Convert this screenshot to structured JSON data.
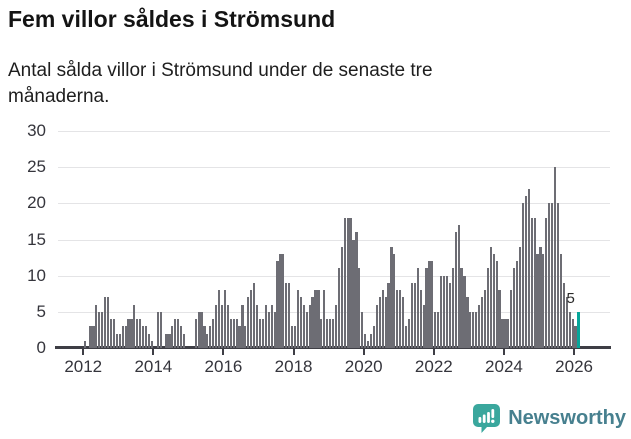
{
  "header": {
    "title": "Fem villor såldes i Strömsund",
    "subtitle": "Antal sålda villor i Strömsund under de senaste tre månaderna."
  },
  "chart_data": {
    "type": "bar",
    "title": "Fem villor såldes i Strömsund",
    "subtitle": "Antal sålda villor i Strömsund under de senaste tre månaderna.",
    "x_start": "2012-01",
    "x_end": "2026-02",
    "frequency": "monthly",
    "values": [
      1,
      0,
      3,
      3,
      6,
      5,
      5,
      7,
      7,
      4,
      4,
      2,
      2,
      3,
      3,
      4,
      4,
      6,
      4,
      4,
      3,
      3,
      2,
      1,
      0,
      5,
      5,
      0,
      2,
      2,
      3,
      4,
      4,
      3,
      2,
      0,
      0,
      0,
      4,
      5,
      5,
      3,
      2,
      3,
      4,
      6,
      8,
      6,
      8,
      6,
      4,
      4,
      4,
      3,
      6,
      3,
      7,
      8,
      9,
      6,
      4,
      4,
      6,
      5,
      6,
      5,
      12,
      13,
      13,
      9,
      9,
      3,
      3,
      8,
      7,
      6,
      5,
      6,
      7,
      8,
      8,
      4,
      8,
      4,
      4,
      4,
      6,
      11,
      14,
      18,
      18,
      18,
      15,
      16,
      11,
      5,
      2,
      1,
      2,
      3,
      6,
      7,
      8,
      7,
      9,
      14,
      13,
      8,
      8,
      7,
      3,
      4,
      9,
      9,
      11,
      8,
      6,
      11,
      12,
      12,
      5,
      5,
      10,
      10,
      10,
      9,
      11,
      16,
      17,
      11,
      10,
      7,
      5,
      5,
      5,
      6,
      7,
      8,
      11,
      14,
      13,
      12,
      8,
      4,
      4,
      4,
      8,
      11,
      12,
      14,
      20,
      21,
      22,
      18,
      18,
      13,
      14,
      13,
      18,
      20,
      20,
      25,
      20,
      13,
      9,
      7,
      5,
      4,
      3,
      5
    ],
    "highlight": {
      "index": 169,
      "value": 5,
      "label": "5",
      "color": "#07a69a"
    },
    "bar_color": "#6d6d74",
    "grid": true,
    "ylim": [
      0,
      30
    ],
    "yticks": [
      "0",
      "5",
      "10",
      "15",
      "20",
      "25",
      "30"
    ],
    "ytick_values": [
      0,
      5,
      10,
      15,
      20,
      25,
      30
    ],
    "xticks": [
      {
        "label": "2012",
        "month_index": 0
      },
      {
        "label": "2014",
        "month_index": 24
      },
      {
        "label": "2016",
        "month_index": 48
      },
      {
        "label": "2018",
        "month_index": 72
      },
      {
        "label": "2020",
        "month_index": 96
      },
      {
        "label": "2022",
        "month_index": 120
      },
      {
        "label": "2024",
        "month_index": 144
      },
      {
        "label": "2026",
        "month_index": 168
      }
    ],
    "colors": {
      "axis": "#3e3e45",
      "gridline": "#e4e4e6",
      "tick_text": "#35353c"
    }
  },
  "footer": {
    "brand": "Newsworthy",
    "logo_color": "#3aa79d",
    "text_color": "#47808f"
  }
}
